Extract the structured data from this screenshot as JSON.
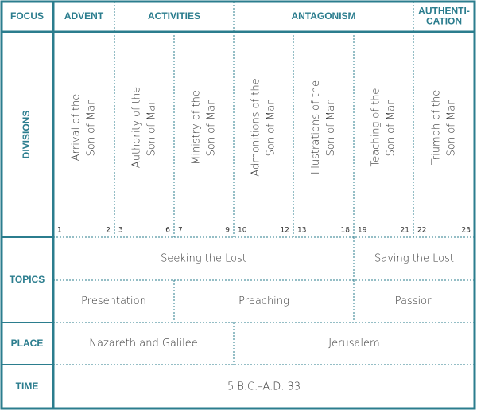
{
  "labels": {
    "focus": "FOCUS",
    "divisions": "DIVISIONS",
    "topics": "TOPICS",
    "place": "PLACE",
    "time": "TIME"
  },
  "focus": [
    [
      "ADVENT"
    ],
    [
      "ACTIVITIES"
    ],
    [
      "ANTAGONISM"
    ],
    [
      "AUTHENTI-",
      "CATION"
    ]
  ],
  "divisions": [
    {
      "lines": [
        "Arrival of the",
        "Son of Man"
      ],
      "start": "1",
      "end": "2"
    },
    {
      "lines": [
        "Authority of the",
        "Son of Man"
      ],
      "start": "3",
      "end": "6"
    },
    {
      "lines": [
        "Ministry of the",
        "Son of Man"
      ],
      "start": "7",
      "end": "9"
    },
    {
      "lines": [
        "Admonitions of the",
        "Son of Man"
      ],
      "start": "10",
      "end": "12"
    },
    {
      "lines": [
        "Illustrations of the",
        "Son of Man"
      ],
      "start": "13",
      "end": "18"
    },
    {
      "lines": [
        "Teaching of the",
        "Son of Man"
      ],
      "start": "19",
      "end": "21"
    },
    {
      "lines": [
        "Triumph of the",
        "Son of Man"
      ],
      "start": "22",
      "end": "23"
    }
  ],
  "topics": {
    "themes": [
      "Seeking the Lost",
      "Saving the Lost"
    ],
    "phases": [
      "Presentation",
      "Preaching",
      "Passion"
    ]
  },
  "place": [
    "Nazareth and Galilee",
    "Jerusalem"
  ],
  "time": "5 B.C.–A.D. 33"
}
